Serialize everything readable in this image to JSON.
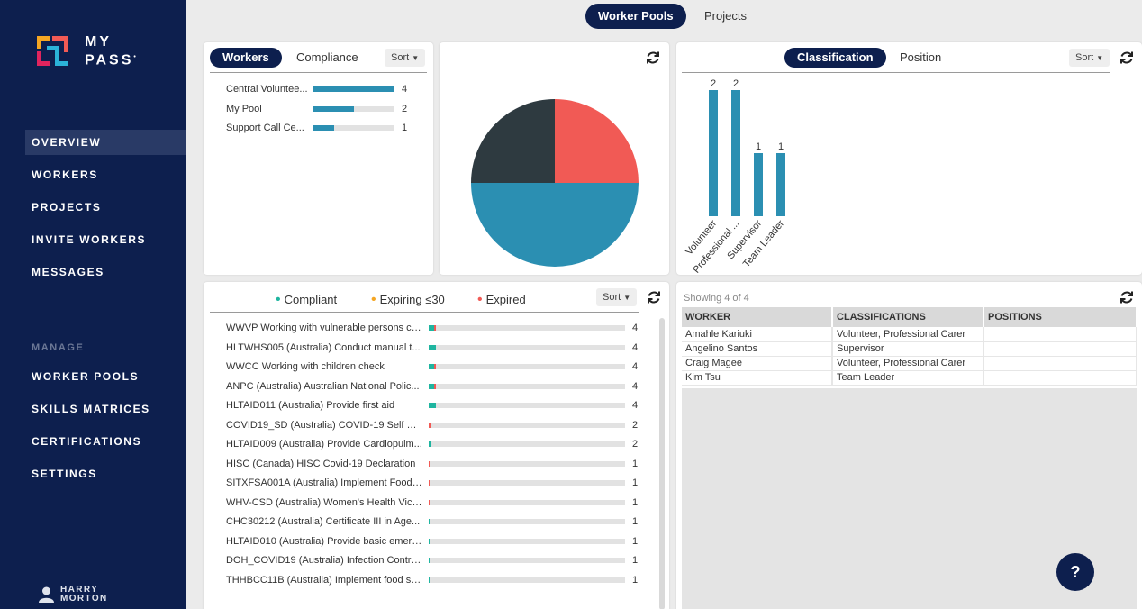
{
  "brand": {
    "line1": "MY",
    "line2": "PASS",
    "mark": "•"
  },
  "sidebar": {
    "nav": [
      {
        "label": "OVERVIEW",
        "active": true
      },
      {
        "label": "WORKERS"
      },
      {
        "label": "PROJECTS"
      },
      {
        "label": "INVITE WORKERS"
      },
      {
        "label": "MESSAGES"
      }
    ],
    "section_label": "MANAGE",
    "manage": [
      {
        "label": "WORKER POOLS"
      },
      {
        "label": "SKILLS MATRICES"
      },
      {
        "label": "CERTIFICATIONS"
      },
      {
        "label": "SETTINGS"
      }
    ],
    "user": {
      "first": "HARRY",
      "last": "MORTON"
    }
  },
  "top_tabs": [
    {
      "label": "Worker Pools",
      "active": true
    },
    {
      "label": "Projects"
    }
  ],
  "pools_panel": {
    "tabs": [
      {
        "label": "Workers",
        "active": true
      },
      {
        "label": "Compliance"
      }
    ],
    "sort_label": "Sort",
    "rows": [
      {
        "label": "Central Voluntee...",
        "count": "4",
        "fraction": 1.0
      },
      {
        "label": "My Pool",
        "count": "2",
        "fraction": 0.5
      },
      {
        "label": "Support Call Ce...",
        "count": "1",
        "fraction": 0.25
      }
    ]
  },
  "pie_chart": {
    "chart_data": {
      "type": "pie",
      "slices": [
        {
          "value": 1,
          "color": "#f15a55"
        },
        {
          "value": 2,
          "color": "#2b8fb2"
        },
        {
          "value": 1,
          "color": "#2e3a40"
        }
      ]
    }
  },
  "classification_panel": {
    "tabs": [
      {
        "label": "Classification",
        "active": true
      },
      {
        "label": "Position"
      }
    ],
    "sort_label": "Sort",
    "chart_data": {
      "type": "bar",
      "categories": [
        "Volunteer",
        "Professional ...",
        "Supervisor",
        "Team Leader"
      ],
      "values": [
        2,
        2,
        1,
        1
      ],
      "ylim": [
        0,
        2
      ],
      "color": "#2b8fb2"
    }
  },
  "compliance_panel": {
    "legend": [
      {
        "label": "Compliant",
        "color": "#1fb5a0"
      },
      {
        "label": "Expiring ≤30",
        "color": "#f5a623"
      },
      {
        "label": "Expired",
        "color": "#f15a55"
      }
    ],
    "sort_label": "Sort",
    "rows": [
      {
        "label": "WWVP Working with vulnerable persons ch...",
        "count": "4",
        "compliant": 2,
        "expired": 1
      },
      {
        "label": "HLTWHS005 (Australia) Conduct manual t...",
        "count": "4",
        "compliant": 3,
        "expired": 0
      },
      {
        "label": "WWCC Working with children check",
        "count": "4",
        "compliant": 2,
        "expired": 1
      },
      {
        "label": "ANPC (Australia) Australian National Polic...",
        "count": "4",
        "compliant": 2,
        "expired": 1
      },
      {
        "label": "HLTAID011 (Australia) Provide first aid",
        "count": "4",
        "compliant": 3,
        "expired": 0
      },
      {
        "label": "COVID19_SD (Australia) COVID-19 Self De...",
        "count": "2",
        "compliant": 0,
        "expired": 1
      },
      {
        "label": "HLTAID009 (Australia) Provide Cardiopulm...",
        "count": "2",
        "compliant": 1,
        "expired": 0
      },
      {
        "label": "HISC (Canada) HISC Covid-19 Declaration",
        "count": "1",
        "compliant": 0,
        "expired": 0.4
      },
      {
        "label": "SITXFSA001A (Australia) Implement Food ...",
        "count": "1",
        "compliant": 0,
        "expired": 0.4
      },
      {
        "label": "WHV-CSD (Australia) Women's Health Vict...",
        "count": "1",
        "compliant": 0,
        "expired": 0.4
      },
      {
        "label": "CHC30212 (Australia) Certificate III in Age...",
        "count": "1",
        "compliant": 0.4,
        "expired": 0
      },
      {
        "label": "HLTAID010 (Australia) Provide basic emerg...",
        "count": "1",
        "compliant": 0.4,
        "expired": 0
      },
      {
        "label": "DOH_COVID19 (Australia) Infection Contro...",
        "count": "1",
        "compliant": 0.4,
        "expired": 0
      },
      {
        "label": "THHBCC11B (Australia) Implement food sa...",
        "count": "1",
        "compliant": 0.4,
        "expired": 0
      }
    ]
  },
  "workers_table": {
    "caption": "Showing 4 of 4",
    "columns": [
      "WORKER",
      "CLASSIFICATIONS",
      "POSITIONS"
    ],
    "rows": [
      [
        "Amahle Kariuki",
        "Volunteer, Professional Carer",
        ""
      ],
      [
        "Angelino Santos",
        "Supervisor",
        ""
      ],
      [
        "Craig Magee",
        "Volunteer, Professional Carer",
        ""
      ],
      [
        "Kim Tsu",
        "Team Leader",
        ""
      ]
    ]
  },
  "help_label": "?"
}
